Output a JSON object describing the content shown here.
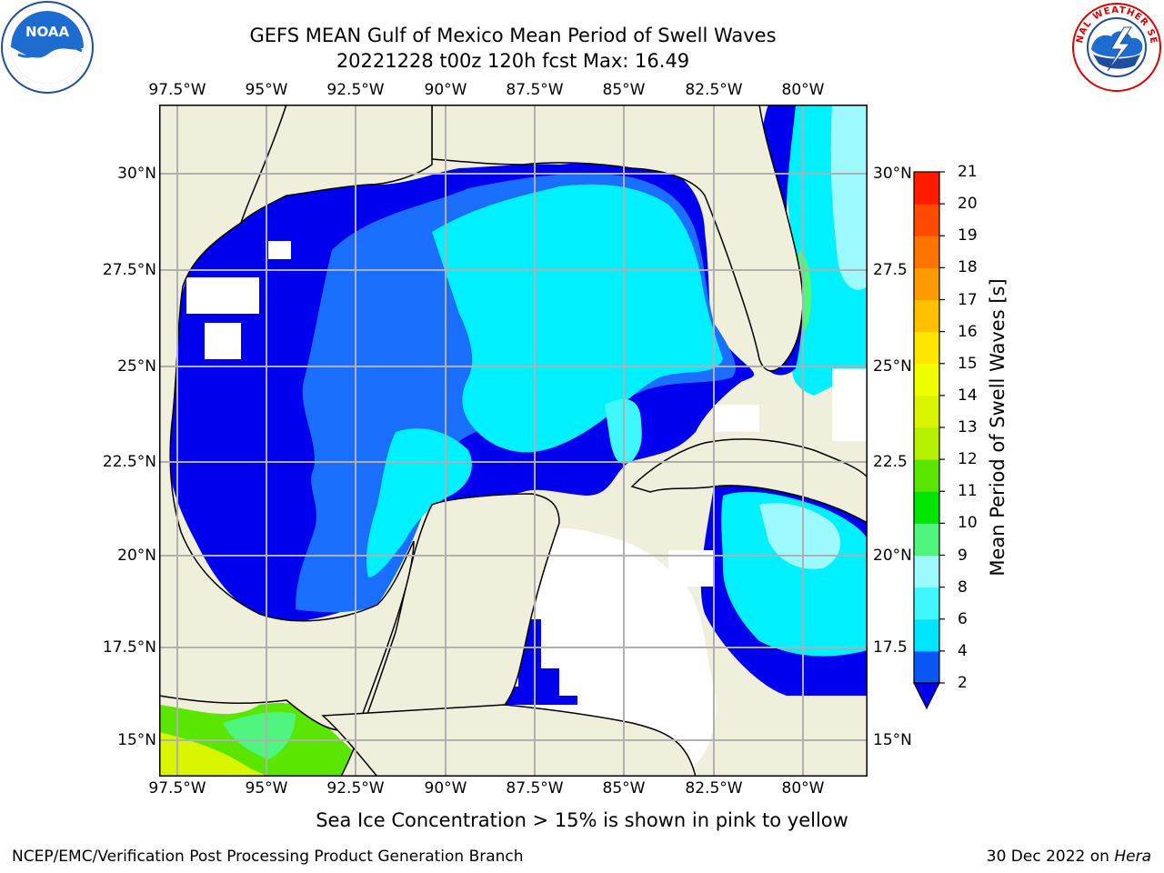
{
  "title_line1": "GEFS MEAN Gulf of Mexico Mean Period of Swell Waves",
  "title_line2": "20221228 t00z 120h fcst   Max: 16.49",
  "lon_ticks": [
    "97.5°W",
    "95°W",
    "92.5°W",
    "90°W",
    "87.5°W",
    "85°W",
    "82.5°W",
    "80°W"
  ],
  "lat_ticks_left": [
    "30°N",
    "27.5°N",
    "25°N",
    "22.5°N",
    "20°N",
    "17.5°N",
    "15°N"
  ],
  "lat_ticks_right": [
    "30°N",
    "27.5",
    "25°N",
    "22.5",
    "20°N",
    "17.5",
    "15°N"
  ],
  "colorbar": {
    "label": "Mean Period of Swell Waves [s]",
    "ticks": [
      "2",
      "4",
      "6",
      "8",
      "9",
      "10",
      "11",
      "12",
      "13",
      "14",
      "15",
      "16",
      "17",
      "18",
      "19",
      "20",
      "21"
    ],
    "colors": [
      "#0a55f5",
      "#00e5ff",
      "#40f7ff",
      "#9cfaff",
      "#4ff57f",
      "#00e600",
      "#5ae600",
      "#b4f000",
      "#d9f500",
      "#f0ff00",
      "#ffe600",
      "#ffc000",
      "#ff9a00",
      "#ff7400",
      "#ff4a00",
      "#ff1a00"
    ],
    "extend_color": "#0000ee"
  },
  "field_colors": {
    "land": "#efefdc",
    "ocean_deep_blue": "#0000ee",
    "ocean_blue": "#1a6fff",
    "ocean_cyan": "#00f0ff",
    "ocean_light_cyan": "#40f7ff",
    "ocean_pale": "#9cfaff",
    "green": "#4ff57f",
    "bright_green": "#5ae600",
    "yellow_green": "#d9f500",
    "nodata": "#ffffff"
  },
  "note": "Sea Ice Concentration > 15% is shown in pink to yellow",
  "footer_left": "NCEP/EMC/Verification Post Processing Product Generation Branch",
  "footer_right_date": "30 Dec 2022 on",
  "footer_right_machine": "Hera",
  "logo_left_text": "NOAA",
  "logo_right_text": "NATIONAL WEATHER SERVICE"
}
